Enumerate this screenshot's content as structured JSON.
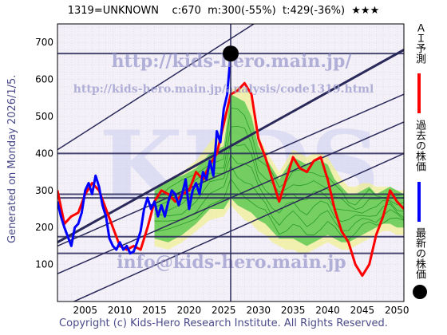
{
  "header": {
    "title": "1319=UNKNOWN    c:670  m:300(-55%)  t:429(-36%)  ★★★"
  },
  "side_label": "Generated on Monday 2026/1/5.",
  "footer": "Copyright (c) Kids-Hero Research Institute. All Rights Reserved.",
  "watermarks": {
    "url": "http://kids-hero.main.jp/",
    "url2": "http://kids-hero.main.jp/analysis/code1319.html",
    "email": "info@kids-hero.main.jp",
    "big": "KIDS"
  },
  "legend": {
    "ai": "ＡＩ予測",
    "past": "過去の株価",
    "latest": "最新の株価"
  },
  "colors": {
    "bg": "#ffffff",
    "plot_bg": "#f4f0f8",
    "frame": "#000000",
    "hline": "#2a2a5a",
    "diag": "#2a2a5a",
    "green": "#40c040",
    "yellow": "#f0f090",
    "blue": "#0000ff",
    "red": "#ff0000",
    "dot": "#000000"
  },
  "chart_data": {
    "type": "line",
    "xlim": [
      2001,
      2051
    ],
    "ylim": [
      0,
      750
    ],
    "xticks": [
      2005,
      2010,
      2015,
      2020,
      2025,
      2030,
      2035,
      2040,
      2045,
      2050
    ],
    "yticks": [
      100,
      200,
      300,
      400,
      500,
      600,
      700
    ],
    "grid": true,
    "hlines": [
      670,
      400,
      290,
      280,
      175,
      130
    ],
    "vline": 2026,
    "diagonals": [
      {
        "x": [
          2001,
          2051
        ],
        "y": [
          410,
          1010
        ]
      },
      {
        "x": [
          2001,
          2051
        ],
        "y": [
          160,
          680
        ]
      },
      {
        "x": [
          2001,
          2051
        ],
        "y": [
          150,
          560
        ]
      },
      {
        "x": [
          2001,
          2051
        ],
        "y": [
          75,
          485
        ]
      },
      {
        "x": [
          2001,
          2051
        ],
        "y": [
          -20,
          400
        ]
      }
    ],
    "latest": {
      "x": 2026,
      "y": 670
    },
    "series": [
      {
        "name": "過去の株価",
        "color": "blue",
        "x": [
          2001,
          2001.5,
          2002,
          2002.5,
          2003,
          2003.5,
          2004,
          2004.5,
          2005,
          2005.5,
          2006,
          2006.5,
          2007,
          2007.5,
          2008,
          2008.5,
          2009,
          2009.5,
          2010,
          2010.5,
          2011,
          2011.5,
          2012,
          2012.5,
          2013,
          2013.5,
          2014,
          2014.5,
          2015,
          2015.5,
          2016,
          2016.5,
          2017,
          2017.5,
          2018,
          2018.5,
          2019,
          2019.5,
          2020,
          2020.5,
          2021,
          2021.5,
          2022,
          2022.5,
          2023,
          2023.5,
          2024,
          2024.5,
          2025,
          2025.5,
          2026
        ],
        "y": [
          270,
          230,
          200,
          175,
          150,
          200,
          210,
          240,
          300,
          320,
          290,
          340,
          310,
          260,
          230,
          170,
          150,
          140,
          160,
          140,
          150,
          130,
          135,
          160,
          190,
          250,
          280,
          250,
          270,
          230,
          260,
          230,
          270,
          300,
          290,
          260,
          290,
          330,
          250,
          300,
          320,
          290,
          350,
          330,
          380,
          340,
          460,
          430,
          520,
          560,
          670
        ]
      },
      {
        "name": "ＡＩ予測",
        "color": "red",
        "x": [
          2001,
          2002,
          2003,
          2004,
          2005,
          2006,
          2007,
          2008,
          2009,
          2010,
          2011,
          2012,
          2013,
          2014,
          2015,
          2016,
          2017,
          2018,
          2019,
          2020,
          2021,
          2022,
          2023,
          2024,
          2025,
          2026,
          2027,
          2028,
          2029,
          2030,
          2031,
          2032,
          2033,
          2034,
          2035,
          2036,
          2037,
          2038,
          2039,
          2040,
          2041,
          2042,
          2043,
          2044,
          2045,
          2046,
          2047,
          2048,
          2049,
          2050,
          2051
        ],
        "y": [
          300,
          210,
          230,
          240,
          290,
          320,
          300,
          250,
          200,
          150,
          140,
          150,
          140,
          200,
          270,
          300,
          290,
          270,
          290,
          300,
          350,
          330,
          370,
          400,
          480,
          560,
          570,
          590,
          560,
          440,
          390,
          330,
          270,
          330,
          390,
          360,
          350,
          380,
          390,
          330,
          250,
          190,
          160,
          100,
          70,
          100,
          180,
          230,
          300,
          270,
          250
        ]
      }
    ],
    "bands": {
      "green": {
        "x": [
          2015,
          2017,
          2019,
          2021,
          2023,
          2025,
          2026,
          2027,
          2028,
          2029,
          2030,
          2031,
          2032,
          2033,
          2034,
          2035,
          2036,
          2037,
          2038,
          2039,
          2040,
          2041,
          2042,
          2043,
          2044,
          2045,
          2046,
          2047,
          2048,
          2049,
          2050,
          2051
        ],
        "upper": [
          300,
          330,
          340,
          360,
          400,
          420,
          560,
          550,
          540,
          500,
          420,
          390,
          360,
          330,
          360,
          390,
          380,
          370,
          380,
          380,
          370,
          330,
          310,
          290,
          290,
          300,
          310,
          290,
          300,
          310,
          300,
          290
        ],
        "lower": [
          170,
          160,
          180,
          210,
          250,
          250,
          280,
          260,
          250,
          240,
          220,
          210,
          190,
          170,
          170,
          170,
          160,
          150,
          160,
          170,
          180,
          170,
          160,
          160,
          170,
          180,
          190,
          200,
          210,
          210,
          200,
          200
        ]
      },
      "yellow": {
        "x": [
          2015,
          2017,
          2019,
          2021,
          2023,
          2025,
          2026,
          2027,
          2028,
          2029,
          2030,
          2031,
          2032,
          2033,
          2034,
          2035,
          2036,
          2037,
          2038,
          2039,
          2040,
          2041,
          2042,
          2043,
          2044,
          2045,
          2046,
          2047,
          2048,
          2049,
          2050,
          2051
        ],
        "upper": [
          300,
          330,
          350,
          380,
          430,
          470,
          570,
          580,
          580,
          560,
          450,
          410,
          380,
          350,
          380,
          410,
          400,
          390,
          400,
          400,
          390,
          360,
          330,
          310,
          310,
          320,
          320,
          310,
          310,
          310,
          300,
          300
        ],
        "lower": [
          150,
          140,
          160,
          190,
          220,
          230,
          260,
          240,
          220,
          210,
          190,
          180,
          160,
          150,
          140,
          140,
          130,
          130,
          140,
          150,
          160,
          150,
          140,
          140,
          150,
          160,
          170,
          180,
          190,
          190,
          180,
          180
        ]
      }
    }
  }
}
